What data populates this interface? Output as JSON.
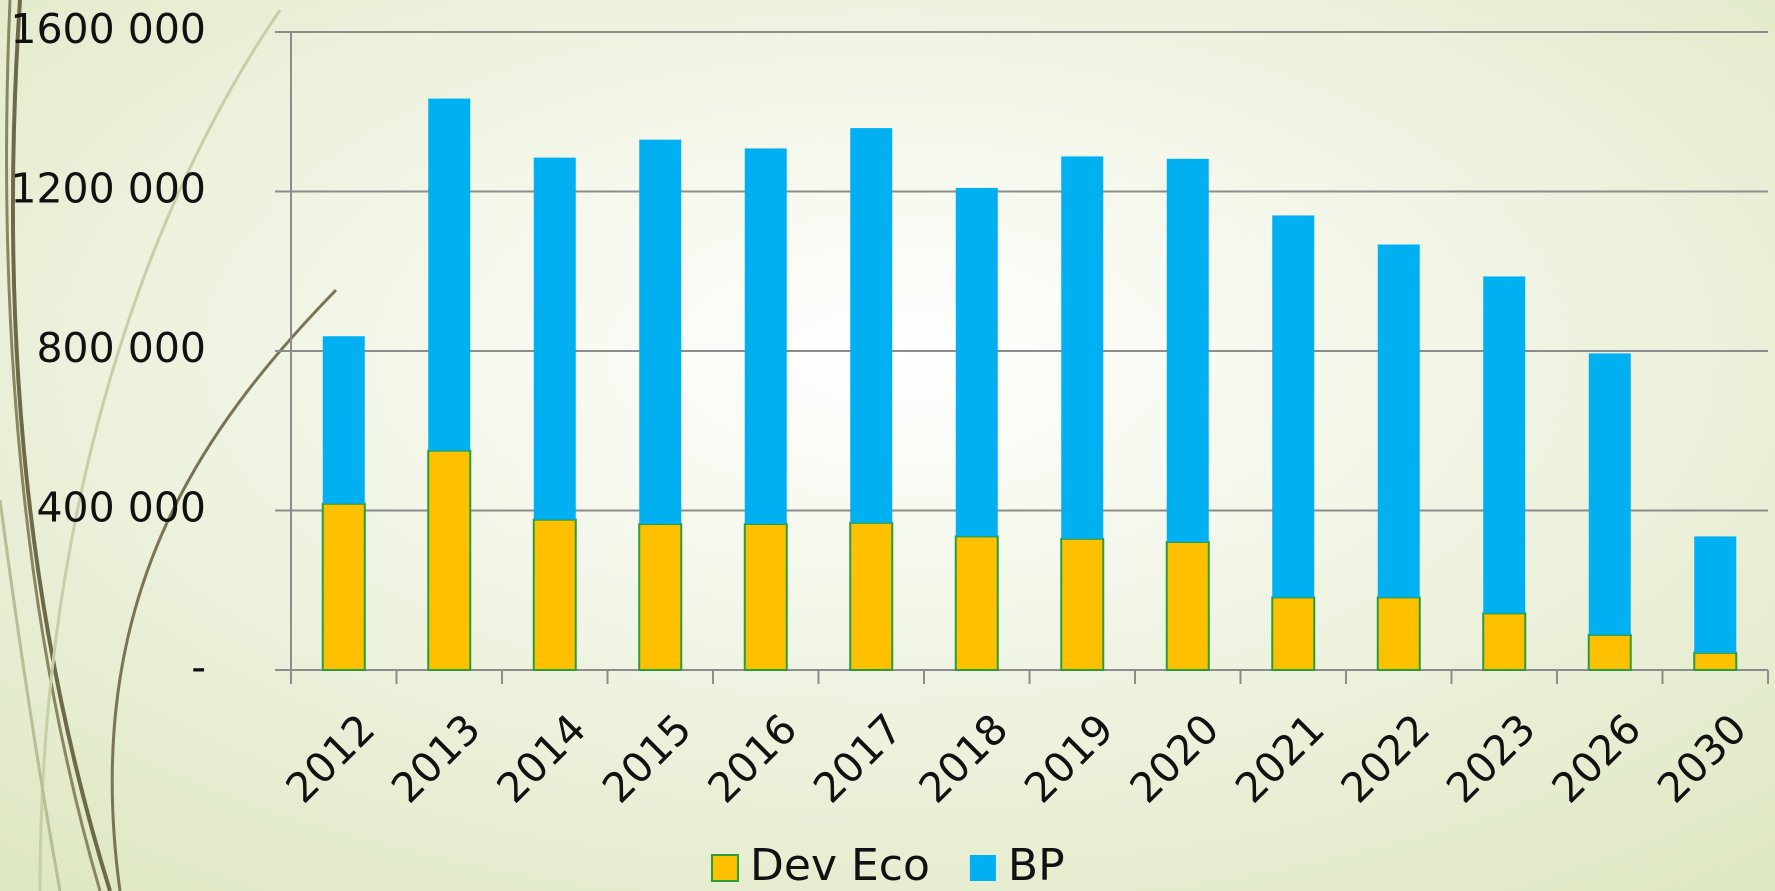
{
  "chart_data": {
    "type": "stacked-bar",
    "categories": [
      "2012",
      "2013",
      "2014",
      "2015",
      "2016",
      "2017",
      "2018",
      "2019",
      "2020",
      "2021",
      "2022",
      "2023",
      "2026",
      "2030"
    ],
    "series": [
      {
        "name": "Dev Eco",
        "color": "#FFC000",
        "values": [
          417000,
          550000,
          377000,
          366000,
          366000,
          369000,
          335000,
          329000,
          321000,
          182000,
          182000,
          142000,
          88000,
          43000
        ]
      },
      {
        "name": "BP",
        "color": "#00B0F0",
        "values": [
          420000,
          883000,
          908000,
          964000,
          942000,
          990000,
          874000,
          959000,
          961000,
          958000,
          885000,
          845000,
          706000,
          292000
        ]
      }
    ],
    "ylim": [
      0,
      1600000
    ],
    "yticks": [
      {
        "value": 0,
        "label": "-"
      },
      {
        "value": 400000,
        "label": "400 000"
      },
      {
        "value": 800000,
        "label": "800 000"
      },
      {
        "value": 1200000,
        "label": "1200 000"
      },
      {
        "value": 1600000,
        "label": "1600 000"
      }
    ],
    "grid": true
  }
}
